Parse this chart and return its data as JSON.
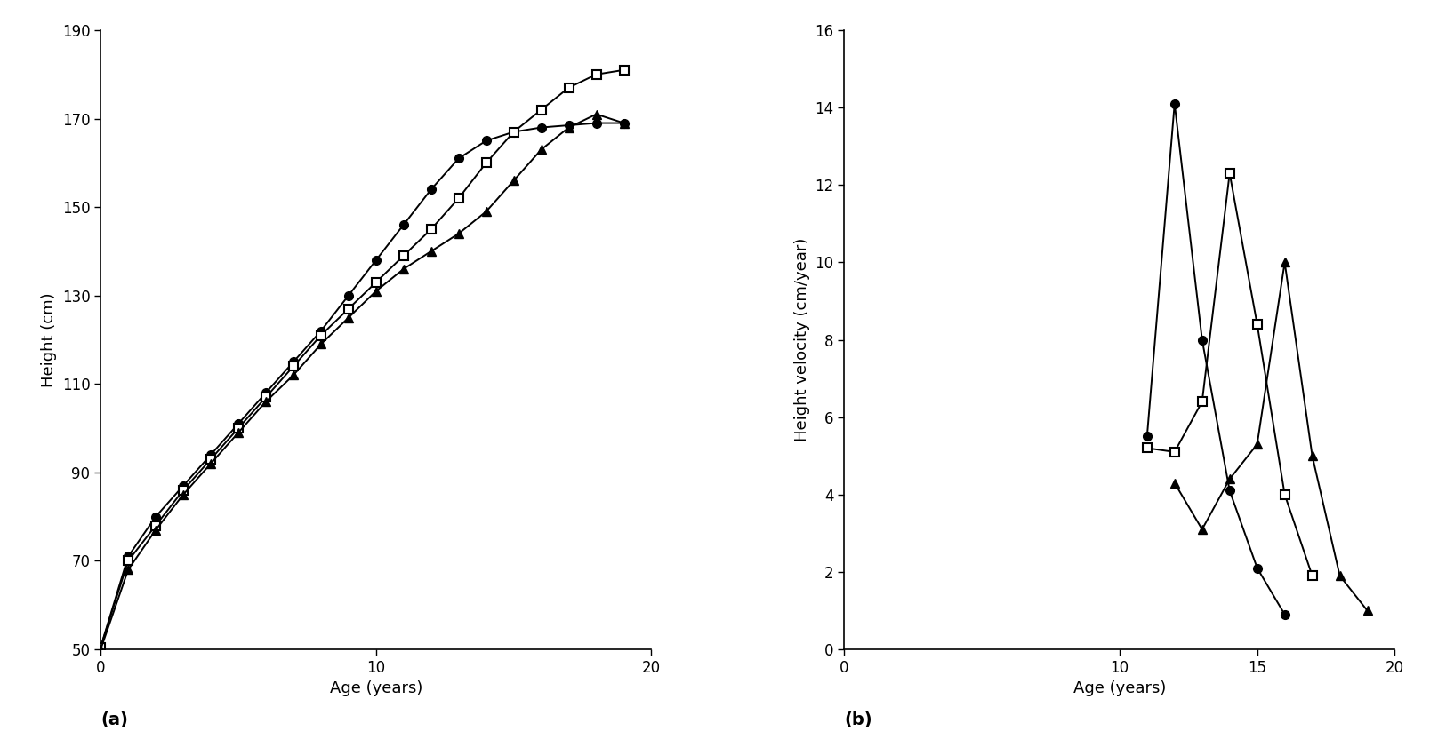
{
  "panel_a": {
    "early_x": [
      0,
      1,
      2,
      3,
      4,
      5,
      6,
      7,
      8,
      9,
      10,
      11,
      12,
      13,
      14,
      15,
      16,
      17,
      18,
      19
    ],
    "early_y": [
      50.5,
      71,
      80,
      87,
      94,
      101,
      108,
      115,
      122,
      130,
      138,
      146,
      154,
      161,
      165,
      167,
      168,
      168.5,
      169,
      169
    ],
    "timed_x": [
      0,
      1,
      2,
      3,
      4,
      5,
      6,
      7,
      8,
      9,
      10,
      11,
      12,
      13,
      14,
      15,
      16,
      17,
      18,
      19
    ],
    "timed_y": [
      50.5,
      70,
      78,
      86,
      93,
      100,
      107,
      114,
      121,
      127,
      133,
      139,
      145,
      152,
      160,
      167,
      172,
      177,
      180,
      181
    ],
    "delayed_x": [
      0,
      1,
      2,
      3,
      4,
      5,
      6,
      7,
      8,
      9,
      10,
      11,
      12,
      13,
      14,
      15,
      16,
      17,
      18,
      19
    ],
    "delayed_y": [
      50,
      68,
      77,
      85,
      92,
      99,
      106,
      112,
      119,
      125,
      131,
      136,
      140,
      144,
      149,
      156,
      163,
      168,
      171,
      169
    ],
    "ylabel": "Height (cm)",
    "xlabel": "Age (years)",
    "label": "(a)",
    "xlim": [
      0,
      20
    ],
    "ylim": [
      50,
      190
    ],
    "yticks": [
      50,
      70,
      90,
      110,
      130,
      150,
      170,
      190
    ],
    "xticks": [
      0,
      10,
      20
    ]
  },
  "panel_b": {
    "early_x": [
      11,
      12,
      13,
      14,
      15,
      16
    ],
    "early_y": [
      5.5,
      14.1,
      8.0,
      4.1,
      2.1,
      0.9
    ],
    "timed_x": [
      11,
      12,
      13,
      14,
      15,
      16,
      17
    ],
    "timed_y": [
      5.2,
      5.1,
      6.4,
      12.3,
      8.4,
      4.0,
      1.9
    ],
    "delayed_x": [
      12,
      13,
      14,
      15,
      16,
      17,
      18,
      19
    ],
    "delayed_y": [
      4.3,
      3.1,
      4.4,
      5.3,
      10.0,
      5.0,
      1.9,
      1.0
    ],
    "ylabel": "Height velocity (cm/year)",
    "xlabel": "Age (years)",
    "label": "(b)",
    "xlim": [
      0,
      20
    ],
    "ylim": [
      0,
      16
    ],
    "yticks": [
      0,
      2,
      4,
      6,
      8,
      10,
      12,
      14,
      16
    ],
    "xticks": [
      0,
      10,
      15,
      20
    ]
  },
  "line_color": "#000000",
  "marker_size": 7,
  "linewidth": 1.4,
  "font_size_label": 13,
  "font_size_axis_label": 13,
  "font_size_ab_label": 14
}
